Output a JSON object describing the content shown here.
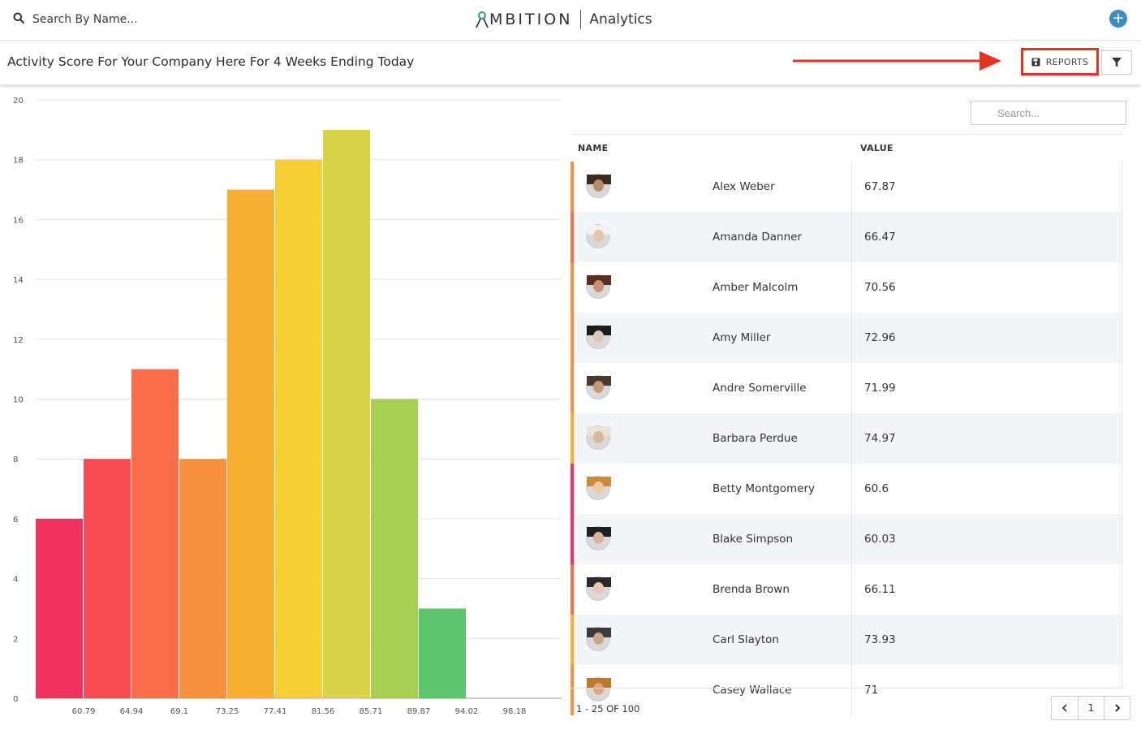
{
  "nav": {
    "search_placeholder": "Search By Name...",
    "brand_text": "MBITION",
    "app_name": "Analytics",
    "add_label": "+"
  },
  "header": {
    "title": "Activity Score For Your Company Here For 4 Weeks Ending Today",
    "reports_label": "REPORTS"
  },
  "colors": {
    "brand_green": "#2e9e7a",
    "accent_blue": "#3c8dc5",
    "highlight_red": "#e63223"
  },
  "chart_data": {
    "type": "bar",
    "title": "",
    "xlabel": "",
    "ylabel": "",
    "ylim": [
      0,
      20
    ],
    "yticks": [
      0,
      2,
      4,
      6,
      8,
      10,
      12,
      14,
      16,
      18,
      20
    ],
    "bin_edges": [
      "60.79",
      "64.94",
      "69.1",
      "73.25",
      "77.41",
      "81.56",
      "85.71",
      "89.87",
      "94.02",
      "98.18"
    ],
    "values": [
      6,
      8,
      11,
      8,
      17,
      18,
      19,
      10,
      3,
      0,
      0
    ],
    "bar_colors": [
      "#f0325e",
      "#f84b52",
      "#fa6d4a",
      "#f8913f",
      "#f7b031",
      "#f6cf35",
      "#d9d44a",
      "#a7cd52",
      "#5cc56d",
      "#5cc56d",
      "#5cc56d"
    ],
    "grid": true
  },
  "table": {
    "search_placeholder": "Search...",
    "col_name": "NAME",
    "col_value": "VALUE",
    "rows": [
      {
        "name": "Alex Weber",
        "value": "67.87",
        "stripe": "#f8913f",
        "skin": "#b98a6e",
        "hair": "#3b2c22"
      },
      {
        "name": "Amanda Danner",
        "value": "66.47",
        "stripe": "#fa6d4a",
        "skin": "#e6c5a8",
        "hair": "#f1f1f1"
      },
      {
        "name": "Amber Malcolm",
        "value": "70.56",
        "stripe": "#f8913f",
        "skin": "#c98f78",
        "hair": "#5a2e22"
      },
      {
        "name": "Amy Miller",
        "value": "72.96",
        "stripe": "#f8913f",
        "skin": "#d8c8bc",
        "hair": "#1c1c1c"
      },
      {
        "name": "Andre Somerville",
        "value": "71.99",
        "stripe": "#f8913f",
        "skin": "#c4987c",
        "hair": "#4b3a2c"
      },
      {
        "name": "Barbara Perdue",
        "value": "74.97",
        "stripe": "#f7b031",
        "skin": "#d9b89c",
        "hair": "#e9e4da"
      },
      {
        "name": "Betty Montgomery",
        "value": "60.6",
        "stripe": "#f0325e",
        "skin": "#efc9a4",
        "hair": "#c98a3a"
      },
      {
        "name": "Blake Simpson",
        "value": "60.03",
        "stripe": "#f0325e",
        "skin": "#d9b49c",
        "hair": "#1f1f1f"
      },
      {
        "name": "Brenda Brown",
        "value": "66.11",
        "stripe": "#fa6d4a",
        "skin": "#eac7b2",
        "hair": "#2a2a2a"
      },
      {
        "name": "Carl Slayton",
        "value": "73.93",
        "stripe": "#f7b031",
        "skin": "#c7a68c",
        "hair": "#3a3a3a"
      },
      {
        "name": "Casey Wallace",
        "value": "71",
        "stripe": "#f8913f",
        "skin": "#d8a78a",
        "hair": "#c0772a"
      }
    ],
    "pagination_info": "1 - 25 OF 100",
    "current_page": "1"
  }
}
